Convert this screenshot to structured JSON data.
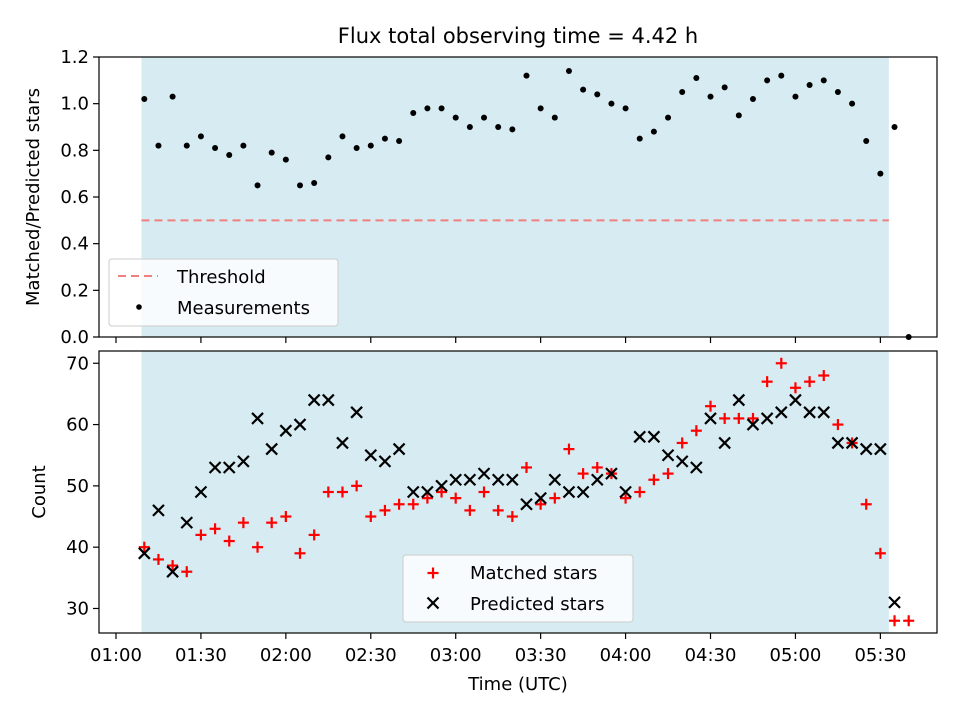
{
  "title": "Flux total observing time = 4.42 h",
  "colors": {
    "span_fill": "#add8e6",
    "threshold": "#f08080",
    "matched": "#ff0000",
    "predicted": "#000000",
    "measurement": "#000000"
  },
  "chart_data": [
    {
      "type": "scatter",
      "title": "Flux total observing time = 4.42 h",
      "xlabel": "",
      "ylabel": "Matched/Predicted stars",
      "ylim": [
        0.0,
        1.2
      ],
      "yticks": [
        "0.0",
        "0.2",
        "0.4",
        "0.6",
        "0.8",
        "1.0",
        "1.2"
      ],
      "x_axis": "time_utc",
      "shaded_span": [
        "01:09",
        "05:33"
      ],
      "legend_position": "lower-left",
      "threshold": {
        "name": "Threshold",
        "value": 0.5,
        "style": "dashed"
      },
      "series": [
        {
          "name": "Measurements",
          "marker": "dot",
          "x": [
            "01:10",
            "01:15",
            "01:20",
            "01:25",
            "01:30",
            "01:35",
            "01:40",
            "01:45",
            "01:50",
            "01:55",
            "02:00",
            "02:05",
            "02:10",
            "02:15",
            "02:20",
            "02:25",
            "02:30",
            "02:35",
            "02:40",
            "02:45",
            "02:50",
            "02:55",
            "03:00",
            "03:05",
            "03:10",
            "03:15",
            "03:20",
            "03:25",
            "03:30",
            "03:35",
            "03:40",
            "03:45",
            "03:50",
            "03:55",
            "04:00",
            "04:05",
            "04:10",
            "04:15",
            "04:20",
            "04:25",
            "04:30",
            "04:35",
            "04:40",
            "04:45",
            "04:50",
            "04:55",
            "05:00",
            "05:05",
            "05:10",
            "05:15",
            "05:20",
            "05:25",
            "05:30",
            "05:35",
            "05:40"
          ],
          "y": [
            1.02,
            0.82,
            1.03,
            0.82,
            0.86,
            0.81,
            0.78,
            0.82,
            0.65,
            0.79,
            0.76,
            0.65,
            0.66,
            0.77,
            0.86,
            0.81,
            0.82,
            0.85,
            0.84,
            0.96,
            0.98,
            0.98,
            0.94,
            0.9,
            0.94,
            0.9,
            0.89,
            1.12,
            0.98,
            0.94,
            1.14,
            1.06,
            1.04,
            1.0,
            0.98,
            0.85,
            0.88,
            0.94,
            1.05,
            1.11,
            1.03,
            1.07,
            0.95,
            1.02,
            1.1,
            1.12,
            1.03,
            1.08,
            1.1,
            1.05,
            1.0,
            0.84,
            0.7,
            0.9,
            0.0
          ]
        }
      ]
    },
    {
      "type": "scatter",
      "xlabel": "Time (UTC)",
      "ylabel": "Count",
      "ylim": [
        26,
        72
      ],
      "yticks": [
        "30",
        "40",
        "50",
        "60",
        "70"
      ],
      "xlim": [
        "00:54",
        "05:50"
      ],
      "xticks": [
        "01:00",
        "01:30",
        "02:00",
        "02:30",
        "03:00",
        "03:30",
        "04:00",
        "04:30",
        "05:00",
        "05:30"
      ],
      "shaded_span": [
        "01:09",
        "05:33"
      ],
      "legend_position": "lower-center",
      "series": [
        {
          "name": "Matched stars",
          "marker": "plus",
          "x": [
            "01:10",
            "01:15",
            "01:20",
            "01:25",
            "01:30",
            "01:35",
            "01:40",
            "01:45",
            "01:50",
            "01:55",
            "02:00",
            "02:05",
            "02:10",
            "02:15",
            "02:20",
            "02:25",
            "02:30",
            "02:35",
            "02:40",
            "02:45",
            "02:50",
            "02:55",
            "03:00",
            "03:05",
            "03:10",
            "03:15",
            "03:20",
            "03:25",
            "03:30",
            "03:35",
            "03:40",
            "03:45",
            "03:50",
            "03:55",
            "04:00",
            "04:05",
            "04:10",
            "04:15",
            "04:20",
            "04:25",
            "04:30",
            "04:35",
            "04:40",
            "04:45",
            "04:50",
            "04:55",
            "05:00",
            "05:05",
            "05:10",
            "05:15",
            "05:20",
            "05:25",
            "05:30",
            "05:35",
            "05:40"
          ],
          "y": [
            40,
            38,
            37,
            36,
            42,
            43,
            41,
            44,
            40,
            44,
            45,
            39,
            42,
            49,
            49,
            50,
            45,
            46,
            47,
            47,
            48,
            49,
            48,
            46,
            49,
            46,
            45,
            53,
            47,
            48,
            56,
            52,
            53,
            52,
            48,
            49,
            51,
            52,
            57,
            59,
            63,
            61,
            61,
            61,
            67,
            70,
            66,
            67,
            68,
            60,
            57,
            47,
            39,
            28,
            28
          ]
        },
        {
          "name": "Predicted stars",
          "marker": "x",
          "x": [
            "01:10",
            "01:15",
            "01:20",
            "01:25",
            "01:30",
            "01:35",
            "01:40",
            "01:45",
            "01:50",
            "01:55",
            "02:00",
            "02:05",
            "02:10",
            "02:15",
            "02:20",
            "02:25",
            "02:30",
            "02:35",
            "02:40",
            "02:45",
            "02:50",
            "02:55",
            "03:00",
            "03:05",
            "03:10",
            "03:15",
            "03:20",
            "03:25",
            "03:30",
            "03:35",
            "03:40",
            "03:45",
            "03:50",
            "03:55",
            "04:00",
            "04:05",
            "04:10",
            "04:15",
            "04:20",
            "04:25",
            "04:30",
            "04:35",
            "04:40",
            "04:45",
            "04:50",
            "04:55",
            "05:00",
            "05:05",
            "05:10",
            "05:15",
            "05:20",
            "05:25",
            "05:30",
            "05:35"
          ],
          "y": [
            39,
            46,
            36,
            44,
            49,
            53,
            53,
            54,
            61,
            56,
            59,
            60,
            64,
            64,
            57,
            62,
            55,
            54,
            56,
            49,
            49,
            50,
            51,
            51,
            52,
            51,
            51,
            47,
            48,
            51,
            49,
            49,
            51,
            52,
            49,
            58,
            58,
            55,
            54,
            53,
            61,
            57,
            64,
            60,
            61,
            62,
            64,
            62,
            62,
            57,
            57,
            56,
            56,
            31
          ]
        }
      ]
    }
  ]
}
